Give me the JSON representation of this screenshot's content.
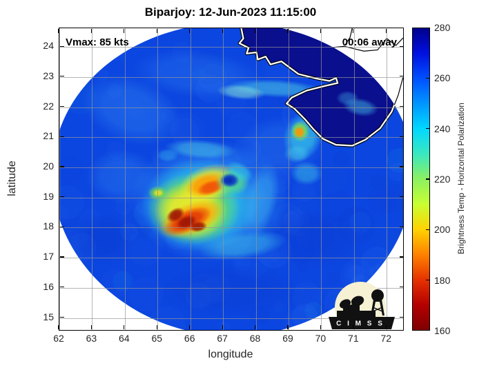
{
  "title": "Biparjoy: 12-Jun-2023 11:15:00",
  "annotations": {
    "vmax": "Vmax: 85 kts",
    "eta": "00:06 away"
  },
  "logo": {
    "letters": "C I M S S"
  },
  "chart_data": {
    "type": "heatmap",
    "title": "Biparjoy: 12-Jun-2023 11:15:00",
    "xlabel": "longitude",
    "ylabel": "latitude",
    "xlim": [
      62,
      72.5
    ],
    "ylim": [
      14.6,
      24.62
    ],
    "xticks": [
      62,
      63,
      64,
      65,
      66,
      67,
      68,
      69,
      70,
      71,
      72
    ],
    "yticks": [
      15,
      16,
      17,
      18,
      19,
      20,
      21,
      22,
      23,
      24
    ],
    "grid": true,
    "grid_color": "rgba(150,150,150,0.7)",
    "colorbar": {
      "label": "Brightness Temp - Horizontal Polarization",
      "range": [
        160,
        280
      ],
      "ticks": [
        160,
        180,
        200,
        220,
        240,
        260,
        280
      ],
      "colormap": [
        [
          160,
          "#800000"
        ],
        [
          170,
          "#b40000"
        ],
        [
          180,
          "#e63200"
        ],
        [
          190,
          "#ff8200"
        ],
        [
          200,
          "#ffd200"
        ],
        [
          210,
          "#c8ff32"
        ],
        [
          220,
          "#8cf060"
        ],
        [
          230,
          "#3ae8c0"
        ],
        [
          240,
          "#00d8ff"
        ],
        [
          250,
          "#0096ff"
        ],
        [
          260,
          "#0050ff"
        ],
        [
          270,
          "#0010e0"
        ],
        [
          280,
          "#00008c"
        ]
      ]
    },
    "swath": {
      "center": [
        67.3,
        19.6
      ],
      "radius_deg": 5.2,
      "ocean_color": "#0b46e0"
    },
    "land_color": "#0a0f8e",
    "coast_style": {
      "inner_outline": "#000000",
      "inner_fill": "#ffffff",
      "outer_line": "#000000"
    },
    "storm": {
      "name": "Biparjoy",
      "vmax_kts": 85,
      "center_lonlat": [
        67.2,
        19.6
      ],
      "eye_brightness_K": 265,
      "coldest_band_K": 165,
      "ocean_background_K": 252,
      "land_K": 280
    },
    "blobs_fields": "lon, lat, rx_deg, ry_deg, rot_deg, color, alpha",
    "blobs": [
      [
        63.9,
        19.7,
        1.1,
        0.9,
        0,
        "#2f80f0",
        0.4
      ],
      [
        64.2,
        21.9,
        1.6,
        1.1,
        20,
        "#2f80f0",
        0.45
      ],
      [
        66.2,
        23.1,
        2.0,
        0.8,
        5,
        "#2a76ee",
        0.4
      ],
      [
        68.8,
        20.7,
        1.3,
        1.0,
        0,
        "#2f80f0",
        0.35
      ],
      [
        63.3,
        17.6,
        1.2,
        0.9,
        0,
        "#0a38cc",
        0.3
      ],
      [
        67.2,
        15.9,
        2.2,
        0.9,
        0,
        "#0a38cc",
        0.3
      ],
      [
        69.8,
        17.6,
        1.6,
        1.0,
        0,
        "#0a38cc",
        0.3
      ],
      [
        66.6,
        18.9,
        2.45,
        2.05,
        0,
        "#2e8df2",
        0.8
      ],
      [
        66.3,
        18.75,
        1.8,
        1.55,
        0,
        "#27cfe2",
        0.85
      ],
      [
        66.1,
        18.62,
        1.42,
        1.2,
        0,
        "#7fe03a",
        0.85
      ],
      [
        66.02,
        18.55,
        1.12,
        0.97,
        0,
        "#f2ea28",
        0.92
      ],
      [
        66.55,
        19.45,
        0.95,
        0.62,
        -20,
        "#f0e828",
        0.88
      ],
      [
        66.5,
        19.42,
        0.66,
        0.4,
        -15,
        "#ff9702",
        0.92
      ],
      [
        66.62,
        19.33,
        0.44,
        0.24,
        -18,
        "#ef4e07",
        0.92
      ],
      [
        66.0,
        18.28,
        1.05,
        0.52,
        -22,
        "#ff9702",
        0.88
      ],
      [
        65.92,
        18.22,
        0.78,
        0.36,
        -24,
        "#e03008",
        0.9
      ],
      [
        65.55,
        18.42,
        0.3,
        0.22,
        -32,
        "#9c1404",
        0.95
      ],
      [
        65.88,
        18.18,
        0.34,
        0.22,
        -20,
        "#9c1404",
        0.95
      ],
      [
        66.24,
        18.03,
        0.28,
        0.18,
        -10,
        "#9c1404",
        0.9
      ],
      [
        65.0,
        19.15,
        0.3,
        0.24,
        0,
        "#7fe03a",
        0.7
      ],
      [
        65.02,
        19.15,
        0.16,
        0.12,
        0,
        "#f0e020",
        0.85
      ],
      [
        67.28,
        19.5,
        0.52,
        0.44,
        0,
        "#55d88a",
        0.8
      ],
      [
        67.5,
        19.85,
        0.45,
        0.3,
        30,
        "#35cfe0",
        0.6
      ],
      [
        67.2,
        19.57,
        0.3,
        0.245,
        0,
        "#0a39c6",
        1.0
      ],
      [
        67.17,
        19.57,
        0.16,
        0.12,
        0,
        "#0a2fb2",
        0.9
      ],
      [
        68.15,
        18.9,
        0.5,
        1.3,
        14,
        "#3fb9ef",
        0.45
      ],
      [
        67.6,
        17.4,
        1.35,
        0.45,
        -8,
        "#40c4e6",
        0.5
      ],
      [
        66.3,
        20.6,
        1.1,
        0.32,
        4,
        "#4fd2e6",
        0.5
      ],
      [
        69.45,
        21.05,
        0.6,
        0.85,
        18,
        "#38c8e8",
        0.7
      ],
      [
        69.35,
        21.2,
        0.3,
        0.35,
        0,
        "#85e040",
        0.85
      ],
      [
        69.33,
        21.17,
        0.17,
        0.2,
        0,
        "#ff9205",
        0.92
      ],
      [
        69.55,
        19.8,
        0.5,
        0.4,
        0,
        "#40c8e8",
        0.5
      ],
      [
        69.25,
        20.45,
        0.4,
        0.3,
        0,
        "#48cbe8",
        0.5
      ],
      [
        68.6,
        22.62,
        1.5,
        0.3,
        3,
        "#4fd2e6",
        0.55
      ],
      [
        67.55,
        22.5,
        0.75,
        0.25,
        5,
        "#8fecd8",
        0.55
      ],
      [
        65.3,
        20.4,
        0.35,
        0.22,
        0,
        "#40c8e8",
        0.35
      ]
    ],
    "blobs_overland": [
      [
        71.2,
        22.0,
        0.55,
        0.3,
        10,
        "#45c4ea",
        0.5
      ],
      [
        70.8,
        22.3,
        0.35,
        0.25,
        0,
        "#3fb0e8",
        0.4
      ]
    ],
    "land_polygons": [
      [
        [
          67.55,
          24.65
        ],
        [
          67.62,
          24.28
        ],
        [
          67.5,
          24.12
        ],
        [
          67.78,
          23.97
        ],
        [
          67.72,
          23.78
        ],
        [
          68.02,
          23.82
        ],
        [
          68.06,
          23.58
        ],
        [
          68.3,
          23.68
        ],
        [
          68.45,
          23.42
        ],
        [
          68.78,
          23.52
        ],
        [
          69.3,
          23.1
        ],
        [
          69.85,
          22.95
        ],
        [
          70.25,
          22.87
        ],
        [
          70.45,
          22.97
        ],
        [
          70.5,
          22.8
        ],
        [
          70.1,
          22.7
        ],
        [
          69.55,
          22.55
        ],
        [
          69.1,
          22.32
        ],
        [
          68.94,
          22.12
        ],
        [
          69.18,
          21.95
        ],
        [
          69.5,
          21.6
        ],
        [
          69.75,
          21.28
        ],
        [
          70.05,
          20.95
        ],
        [
          70.45,
          20.75
        ],
        [
          70.95,
          20.72
        ],
        [
          71.35,
          20.92
        ],
        [
          71.8,
          21.3
        ],
        [
          72.15,
          21.85
        ],
        [
          72.35,
          22.4
        ],
        [
          72.5,
          23.0
        ],
        [
          72.7,
          23.4
        ],
        [
          73.3,
          23.8
        ],
        [
          73.3,
          24.65
        ]
      ]
    ],
    "coastline_main": [
      [
        67.55,
        24.65
      ],
      [
        67.62,
        24.28
      ],
      [
        67.5,
        24.12
      ],
      [
        67.78,
        23.97
      ],
      [
        67.72,
        23.78
      ],
      [
        68.02,
        23.82
      ],
      [
        68.06,
        23.58
      ],
      [
        68.3,
        23.68
      ],
      [
        68.45,
        23.42
      ],
      [
        68.78,
        23.52
      ],
      [
        69.3,
        23.1
      ],
      [
        69.85,
        22.95
      ],
      [
        70.25,
        22.87
      ],
      [
        70.45,
        22.97
      ],
      [
        70.5,
        22.8
      ],
      [
        70.1,
        22.7
      ],
      [
        69.55,
        22.55
      ],
      [
        69.1,
        22.32
      ],
      [
        68.94,
        22.12
      ],
      [
        69.18,
        21.95
      ],
      [
        69.5,
        21.6
      ],
      [
        69.75,
        21.28
      ],
      [
        70.05,
        20.95
      ],
      [
        70.45,
        20.75
      ],
      [
        70.95,
        20.72
      ],
      [
        71.35,
        20.92
      ],
      [
        71.8,
        21.3
      ],
      [
        72.15,
        21.85
      ],
      [
        72.35,
        22.4
      ],
      [
        72.5,
        23.0
      ]
    ],
    "coastline_outside": [
      [
        [
          69.0,
          24.2
        ],
        [
          69.35,
          24.02
        ],
        [
          69.8,
          24.15
        ],
        [
          70.15,
          23.96
        ],
        [
          70.7,
          24.02
        ],
        [
          71.3,
          23.86
        ],
        [
          71.72,
          23.9
        ],
        [
          72.0,
          24.28
        ],
        [
          72.28,
          24.05
        ],
        [
          72.5,
          24.3
        ]
      ],
      [
        [
          70.95,
          24.65
        ],
        [
          70.88,
          24.32
        ],
        [
          70.72,
          24.05
        ]
      ],
      [
        [
          72.05,
          22.0
        ],
        [
          72.25,
          21.9
        ],
        [
          72.12,
          21.78
        ]
      ],
      [
        [
          72.08,
          21.25
        ],
        [
          72.28,
          20.8
        ],
        [
          72.18,
          20.35
        ]
      ]
    ]
  }
}
